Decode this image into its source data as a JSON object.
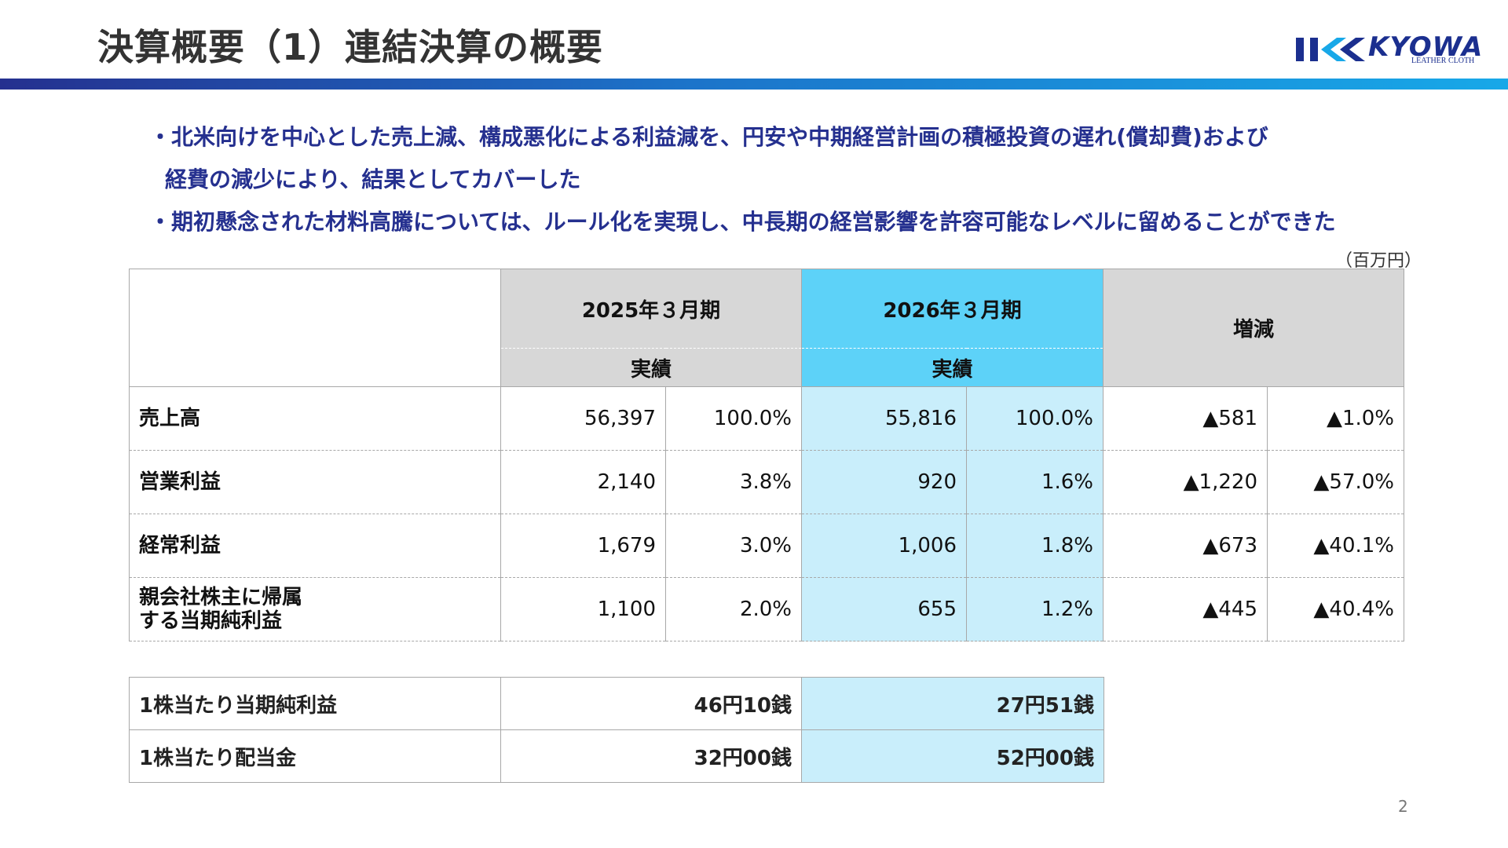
{
  "header": {
    "title": "決算概要（1）連結決算の概要",
    "logo_text": "KYOWA",
    "logo_subtext": "LEATHER CLOTH",
    "accent_colors": [
      "#25308f",
      "#18a8e8"
    ]
  },
  "bullets": [
    "・北米向けを中心とした売上減、構成悪化による利益減を、円安や中期経営計画の積極投資の遅れ(償却費)および",
    "経費の減少により、結果としてカバーした",
    "・期初懸念された材料高騰については、ルール化を実現し、中長期の経営影響を許容可能なレベルに留めることができた"
  ],
  "unit": "（百万円）",
  "table": {
    "col_fy2025": "2025年３月期",
    "col_fy2026": "2026年３月期",
    "col_change": "増減",
    "sub_actual": "実績",
    "rows": [
      {
        "label": "売上高",
        "v1": "56,397",
        "p1": "100.0%",
        "v2": "55,816",
        "p2": "100.0%",
        "d": "▲581",
        "dp": "▲1.0%"
      },
      {
        "label": "営業利益",
        "v1": "2,140",
        "p1": "3.8%",
        "v2": "920",
        "p2": "1.6%",
        "d": "▲1,220",
        "dp": "▲57.0%"
      },
      {
        "label": "経常利益",
        "v1": "1,679",
        "p1": "3.0%",
        "v2": "1,006",
        "p2": "1.8%",
        "d": "▲673",
        "dp": "▲40.1%"
      },
      {
        "label_line1": "親会社株主に帰属",
        "label_line2": "する当期純利益",
        "v1": "1,100",
        "p1": "2.0%",
        "v2": "655",
        "p2": "1.2%",
        "d": "▲445",
        "dp": "▲40.4%"
      }
    ]
  },
  "per_share": [
    {
      "label": "1株当たり当期純利益",
      "fy2025": "46円10銭",
      "fy2026": "27円51銭"
    },
    {
      "label": "1株当たり配当金",
      "fy2025": "32円00銭",
      "fy2026": "52円00銭"
    }
  ],
  "page_number": "2"
}
